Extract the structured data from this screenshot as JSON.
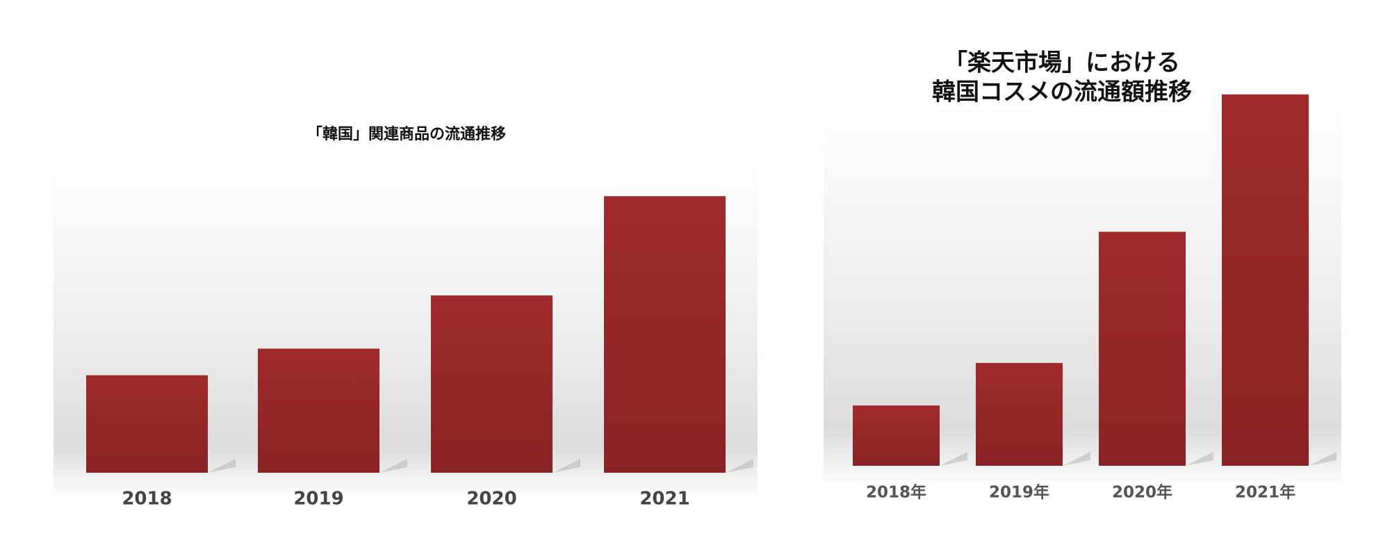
{
  "chart_data": [
    {
      "type": "bar",
      "title": [
        "「韓国」関連商品の流通推移"
      ],
      "categories": [
        "2018",
        "2019",
        "2020",
        "2021"
      ],
      "values": [
        110,
        140,
        200,
        312
      ],
      "color": "#a0292b",
      "ylim": [
        0,
        360
      ]
    },
    {
      "type": "bar",
      "title": [
        "「楽天市場」における",
        "韓国コスメの流通額推移"
      ],
      "categories": [
        "2018年",
        "2019年",
        "2020年",
        "2021年"
      ],
      "values": [
        68,
        116,
        264,
        419
      ],
      "color": "#a0292b",
      "ylim": [
        0,
        440
      ]
    }
  ]
}
